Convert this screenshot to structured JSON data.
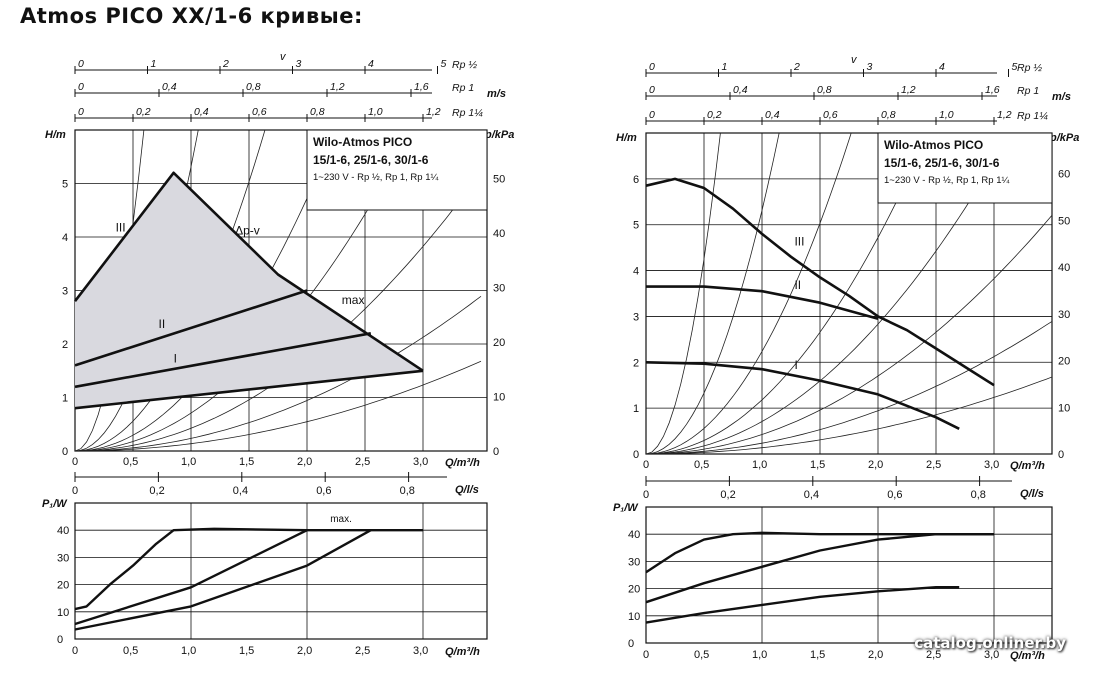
{
  "page_title": "Atmos PICO XX/1-6 кривые:",
  "watermark": "catalog.onliner.by",
  "chart_data": [
    {
      "type": "line",
      "velocity_scales": {
        "v_label": "v",
        "ms_label": "m/s",
        "rows": [
          {
            "name": "Rp ½",
            "ticks": [
              "0",
              "1",
              "2",
              "3",
              "4",
              "5"
            ]
          },
          {
            "name": "Rp 1",
            "ticks": [
              "0",
              "0,4",
              "0,8",
              "1,2",
              "1,6"
            ]
          },
          {
            "name": "Rp 1¼",
            "ticks": [
              "0",
              "0,2",
              "0,4",
              "0,6",
              "0,8",
              "1,0",
              "1,2"
            ]
          }
        ]
      },
      "info": {
        "title": "Wilo-Atmos PICO",
        "models": "15/1-6, 25/1-6, 30/1-6",
        "sub": "1~230 V - Rp ½, Rp 1, Rp 1¼"
      },
      "head": {
        "xlabel": "Q/m³/h",
        "ylabel_left": "H/m",
        "ylabel_right": "p/kPa",
        "xlim": [
          0,
          3.5
        ],
        "ylim": [
          0,
          6
        ],
        "x_ticks": [
          "0",
          "0,5",
          "1,0",
          "1,5",
          "2,0",
          "2,5",
          "3,0"
        ],
        "y_ticks": [
          "0",
          "1",
          "2",
          "3",
          "4",
          "5"
        ],
        "right_ticks": [
          "0",
          "10",
          "20",
          "30",
          "40",
          "50"
        ],
        "shaded_area": [
          [
            0,
            2.8
          ],
          [
            0.85,
            5.2
          ],
          [
            1.75,
            3.3
          ],
          [
            3.0,
            1.5
          ],
          [
            0,
            0.8
          ]
        ],
        "series": [
          {
            "name": "III",
            "x": [
              0,
              0.85,
              1.75,
              3.0
            ],
            "y": [
              2.8,
              5.2,
              3.3,
              1.5
            ]
          },
          {
            "name": "II",
            "x": [
              0,
              2.0
            ],
            "y": [
              1.6,
              3.0
            ]
          },
          {
            "name": "I",
            "x": [
              0,
              2.55
            ],
            "y": [
              1.2,
              2.2
            ]
          },
          {
            "name": "",
            "x": [
              0,
              3.0
            ],
            "y": [
              0.8,
              1.5
            ]
          }
        ],
        "annotations": [
          {
            "text": "III",
            "x": 0.35,
            "y": 4.1
          },
          {
            "text": "II",
            "x": 0.72,
            "y": 2.3
          },
          {
            "text": "I",
            "x": 0.85,
            "y": 1.65
          },
          {
            "text": "Δp-v",
            "x": 1.38,
            "y": 4.05
          },
          {
            "text": "max",
            "x": 2.3,
            "y": 2.75
          }
        ]
      },
      "qls_axis": {
        "label": "Q/l/s",
        "ticks": [
          "0",
          "0,2",
          "0,4",
          "0,6",
          "0,8"
        ]
      },
      "power": {
        "xlabel": "Q/m³/h",
        "ylabel": "P₁/W",
        "xlim": [
          0,
          3.5
        ],
        "ylim": [
          0,
          50
        ],
        "x_ticks": [
          "0",
          "0,5",
          "1,0",
          "1,5",
          "2,0",
          "2,5",
          "3,0"
        ],
        "y_ticks": [
          "0",
          "10",
          "20",
          "30",
          "40"
        ],
        "series": [
          {
            "name": "",
            "x": [
              0,
              0.1,
              0.3,
              0.5,
              0.7,
              0.85,
              1.2,
              2.0,
              3.0
            ],
            "y": [
              11,
              12,
              20,
              27,
              35,
              40,
              40.5,
              40,
              40
            ]
          },
          {
            "name": "",
            "x": [
              0,
              1.0,
              2.0
            ],
            "y": [
              5.5,
              19,
              40
            ]
          },
          {
            "name": "",
            "x": [
              0,
              1.0,
              2.0,
              2.55
            ],
            "y": [
              3.5,
              12,
              27,
              40
            ]
          }
        ],
        "annotations": [
          {
            "text": "max.",
            "x": 2.2,
            "y": 43
          }
        ]
      }
    },
    {
      "type": "line",
      "velocity_scales": {
        "v_label": "v",
        "ms_label": "m/s",
        "rows": [
          {
            "name": "Rp ½",
            "ticks": [
              "0",
              "1",
              "2",
              "3",
              "4",
              "5"
            ]
          },
          {
            "name": "Rp 1",
            "ticks": [
              "0",
              "0,4",
              "0,8",
              "1,2",
              "1,6"
            ]
          },
          {
            "name": "Rp 1¼",
            "ticks": [
              "0",
              "0,2",
              "0,4",
              "0,6",
              "0,8",
              "1,0",
              "1,2"
            ]
          }
        ]
      },
      "info": {
        "title": "Wilo-Atmos PICO",
        "models": "15/1-6, 25/1-6, 30/1-6",
        "sub": "1~230 V - Rp ½, Rp 1, Rp 1¼"
      },
      "head": {
        "xlabel": "Q/m³/h",
        "ylabel_left": "H/m",
        "ylabel_right": "p/kPa",
        "xlim": [
          0,
          3.5
        ],
        "ylim": [
          0,
          7
        ],
        "x_ticks": [
          "0",
          "0,5",
          "1,0",
          "1,5",
          "2,0",
          "2,5",
          "3,0"
        ],
        "y_ticks": [
          "0",
          "1",
          "2",
          "3",
          "4",
          "5",
          "6"
        ],
        "right_ticks": [
          "0",
          "10",
          "20",
          "30",
          "40",
          "50",
          "60"
        ],
        "series": [
          {
            "name": "III",
            "x": [
              0,
              0.25,
              0.5,
              0.75,
              1.0,
              1.25,
              1.5,
              1.75,
              2.0,
              2.25,
              2.5,
              2.75,
              3.0
            ],
            "y": [
              5.85,
              6.0,
              5.8,
              5.35,
              4.8,
              4.3,
              3.85,
              3.45,
              3.0,
              2.7,
              2.3,
              1.9,
              1.5
            ]
          },
          {
            "name": "II",
            "x": [
              0,
              0.5,
              1.0,
              1.5,
              2.0
            ],
            "y": [
              3.65,
              3.65,
              3.55,
              3.3,
              2.95
            ]
          },
          {
            "name": "I",
            "x": [
              0,
              0.5,
              1.0,
              1.5,
              2.0,
              2.5,
              2.7
            ],
            "y": [
              2.0,
              1.97,
              1.85,
              1.6,
              1.3,
              0.8,
              0.55
            ]
          }
        ],
        "annotations": [
          {
            "text": "III",
            "x": 1.28,
            "y": 4.55
          },
          {
            "text": "II",
            "x": 1.28,
            "y": 3.6
          },
          {
            "text": "I",
            "x": 1.28,
            "y": 1.85
          }
        ]
      },
      "qls_axis": {
        "label": "Q/l/s",
        "ticks": [
          "0",
          "0,2",
          "0,4",
          "0,6",
          "0,8"
        ]
      },
      "power": {
        "xlabel": "Q/m³/h",
        "ylabel": "P₁/W",
        "xlim": [
          0,
          3.5
        ],
        "ylim": [
          0,
          50
        ],
        "x_ticks": [
          "0",
          "0,5",
          "1,0",
          "1,5",
          "2,0",
          "2,5",
          "3,0"
        ],
        "y_ticks": [
          "0",
          "10",
          "20",
          "30",
          "40"
        ],
        "series": [
          {
            "name": "",
            "x": [
              0,
              0.25,
              0.5,
              0.75,
              1.0,
              1.5,
              2.0,
              3.0
            ],
            "y": [
              26,
              33,
              38,
              40,
              40.5,
              40,
              40,
              40
            ]
          },
          {
            "name": "",
            "x": [
              0,
              0.5,
              1.0,
              1.5,
              2.0,
              2.5,
              3.0
            ],
            "y": [
              15,
              22,
              28,
              34,
              38,
              40,
              40
            ]
          },
          {
            "name": "",
            "x": [
              0,
              0.5,
              1.0,
              1.5,
              2.0,
              2.5,
              2.7
            ],
            "y": [
              7.5,
              11,
              14,
              17,
              19,
              20.5,
              20.5
            ]
          }
        ]
      }
    }
  ]
}
